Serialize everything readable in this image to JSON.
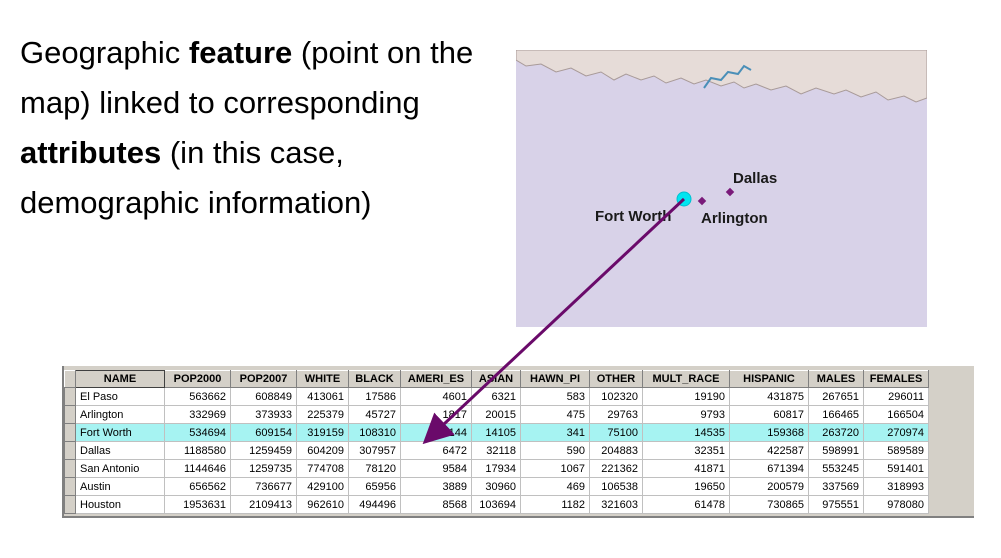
{
  "caption": {
    "part1": "Geographic ",
    "bold1": "feature",
    "part2": " (point on the map) linked to corresponding ",
    "bold2": "attributes",
    "part3": " (in this case, demographic information)"
  },
  "map": {
    "cities": [
      {
        "name": "Dallas"
      },
      {
        "name": "Fort Worth"
      },
      {
        "name": "Arlington"
      }
    ],
    "colors": {
      "background": "#d8d2e8",
      "land_top": "#e6dcd8",
      "selected_point": "#00e5f0",
      "point": "#7a1a7a",
      "arrow": "#6a0a6a"
    }
  },
  "table": {
    "columns": [
      "NAME",
      "POP2000",
      "POP2007",
      "WHITE",
      "BLACK",
      "AMERI_ES",
      "ASIAN",
      "HAWN_PI",
      "OTHER",
      "MULT_RACE",
      "HISPANIC",
      "MALES",
      "FEMALES"
    ],
    "rows": [
      [
        "El Paso",
        "563662",
        "608849",
        "413061",
        "17586",
        "4601",
        "6321",
        "583",
        "102320",
        "19190",
        "431875",
        "267651",
        "296011"
      ],
      [
        "Arlington",
        "332969",
        "373933",
        "225379",
        "45727",
        "1817",
        "20015",
        "475",
        "29763",
        "9793",
        "60817",
        "166465",
        "166504"
      ],
      [
        "Fort Worth",
        "534694",
        "609154",
        "319159",
        "108310",
        "3144",
        "14105",
        "341",
        "75100",
        "14535",
        "159368",
        "263720",
        "270974"
      ],
      [
        "Dallas",
        "1188580",
        "1259459",
        "604209",
        "307957",
        "6472",
        "32118",
        "590",
        "204883",
        "32351",
        "422587",
        "598991",
        "589589"
      ],
      [
        "San Antonio",
        "1144646",
        "1259735",
        "774708",
        "78120",
        "9584",
        "17934",
        "1067",
        "221362",
        "41871",
        "671394",
        "553245",
        "591401"
      ],
      [
        "Austin",
        "656562",
        "736677",
        "429100",
        "65956",
        "3889",
        "30960",
        "469",
        "106538",
        "19650",
        "200579",
        "337569",
        "318993"
      ],
      [
        "Houston",
        "1953631",
        "2109413",
        "962610",
        "494496",
        "8568",
        "103694",
        "1182",
        "321603",
        "61478",
        "730865",
        "975551",
        "978080"
      ]
    ],
    "highlight_row": 2,
    "highlight_color": "#a6f3f2"
  }
}
